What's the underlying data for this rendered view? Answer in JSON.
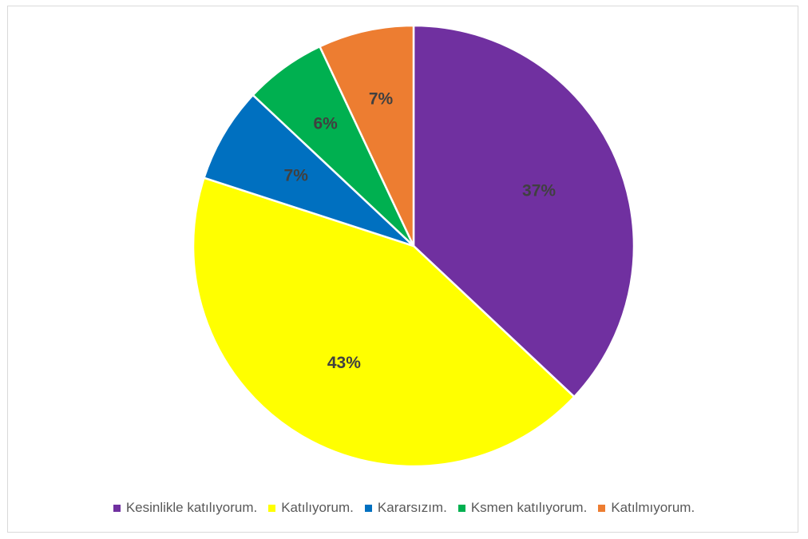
{
  "chart_data": {
    "type": "pie",
    "title": "",
    "slices": [
      {
        "label": "Kesinlikle katılıyorum.",
        "value": 37,
        "display": "37%",
        "color": "#7030A0"
      },
      {
        "label": "Katılıyorum.",
        "value": 43,
        "display": "43%",
        "color": "#FFFF00"
      },
      {
        "label": "Kararsızım.",
        "value": 7,
        "display": "7%",
        "color": "#0070C0"
      },
      {
        "label": "Ksmen katılıyorum.",
        "value": 6,
        "display": "6%",
        "color": "#00B050"
      },
      {
        "label": "Katılmıyorum.",
        "value": 7,
        "display": "7%",
        "color": "#ED7D31"
      }
    ],
    "legend_position": "bottom",
    "start_angle": "top (12 o'clock)",
    "direction": "clockwise"
  }
}
